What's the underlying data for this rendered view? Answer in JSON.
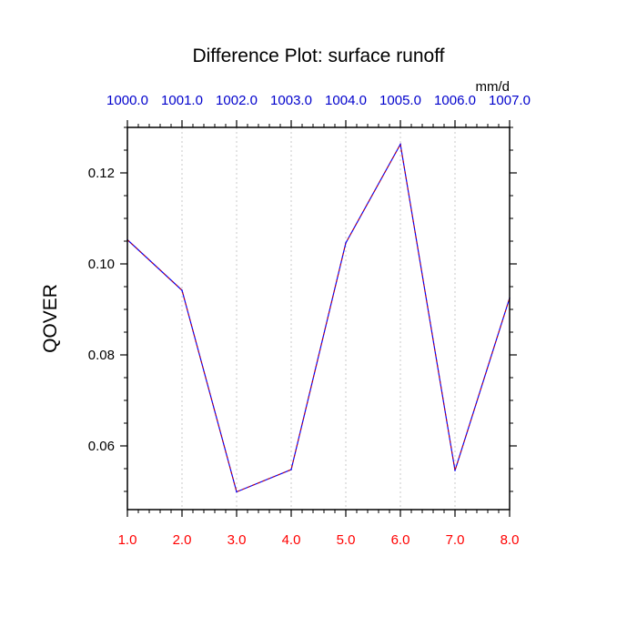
{
  "chart_data": {
    "type": "line",
    "title": "Difference Plot: surface runoff",
    "units_label": "mm/d",
    "ylabel": "QOVER",
    "xlabel": "",
    "xlim": [
      1.0,
      8.0
    ],
    "ylim": [
      0.046,
      0.13
    ],
    "x": [
      1.0,
      2.0,
      3.0,
      4.0,
      5.0,
      6.0,
      7.0,
      8.0
    ],
    "bottom_tick_labels": [
      "1.0",
      "2.0",
      "3.0",
      "4.0",
      "5.0",
      "6.0",
      "7.0",
      "8.0"
    ],
    "top_tick_labels": [
      "1000.0",
      "1001.0",
      "1002.0",
      "1003.0",
      "1004.0",
      "1005.0",
      "1006.0",
      "1007.0"
    ],
    "y_ticks": [
      0.06,
      0.08,
      0.1,
      0.12
    ],
    "y_tick_labels": [
      "0.06",
      "0.08",
      "0.10",
      "0.12"
    ],
    "series": [
      {
        "values": [
          0.1053,
          0.0942,
          0.0499,
          0.0548,
          0.1046,
          0.1263,
          0.0546,
          0.0925
        ]
      }
    ],
    "grid": "vertical dotted",
    "colors": {
      "bottom_axis_labels": "#ff0000",
      "top_axis_labels": "#0000cc",
      "line_outer": "#0000ff",
      "line_inner": "#cc0000",
      "grid": "#c8c8c8"
    }
  }
}
